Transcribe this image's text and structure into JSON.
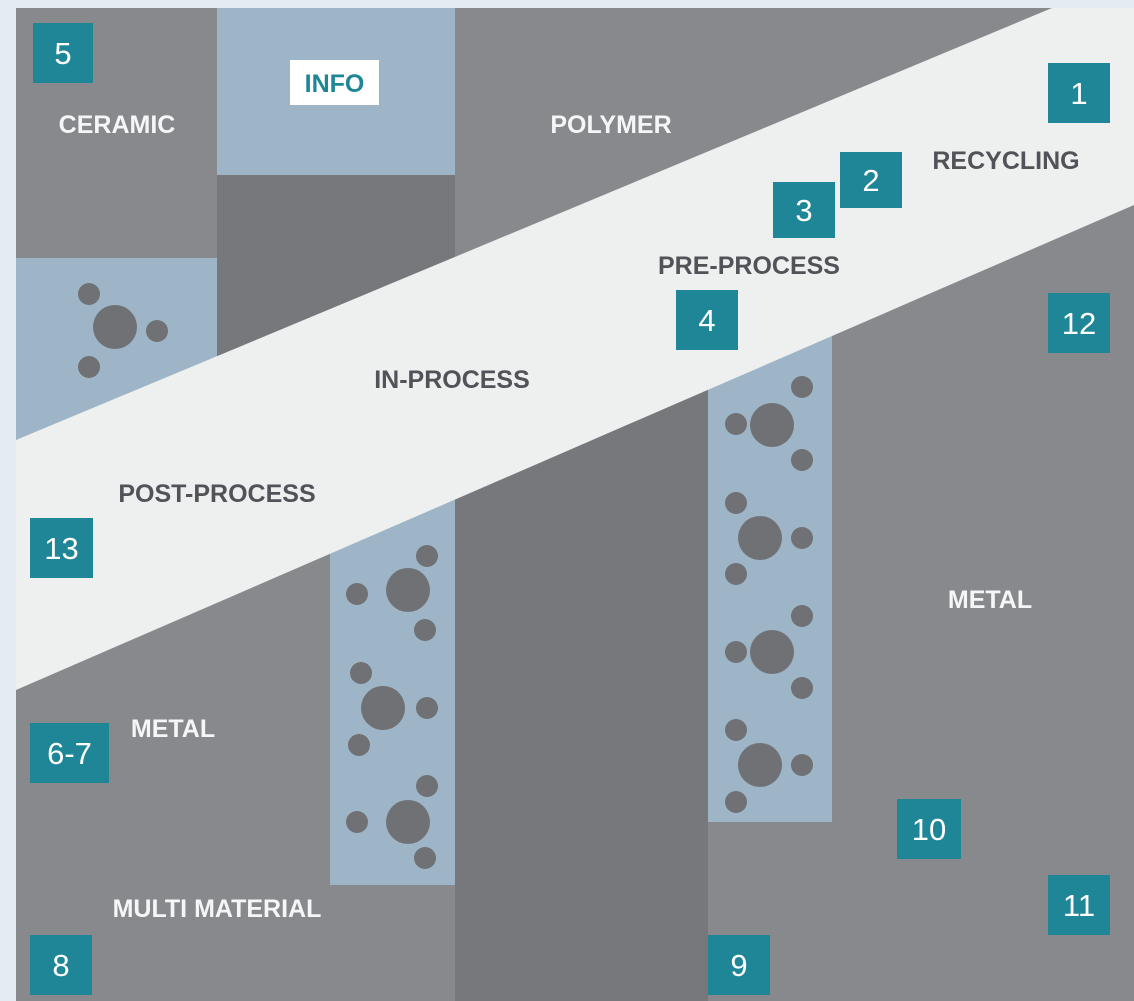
{
  "colors": {
    "background": "#e2ecf2",
    "panel_gray": "#88898c",
    "panel_dark": "#77787c",
    "panel_light_blue": "#9db5c6",
    "band": "#eef0f0",
    "badge": "#1e8697",
    "badge_text": "#ffffff",
    "dot": "#6f7175",
    "label_dark": "#505357",
    "label_light": "#f4f6f7"
  },
  "info_button": {
    "label": "INFO"
  },
  "regions": {
    "ceramic": "CERAMIC",
    "polymer": "POLYMER",
    "metal_right": "METAL",
    "metal_left": "METAL",
    "multi_material": "MULTI MATERIAL"
  },
  "process_band": {
    "recycling": "RECYCLING",
    "pre_process": "PRE-PROCESS",
    "in_process": "IN-PROCESS",
    "post_process": "POST-PROCESS"
  },
  "badges": {
    "b1": "1",
    "b2": "2",
    "b3": "3",
    "b4": "4",
    "b5": "5",
    "b6_7": "6-7",
    "b8": "8",
    "b9": "9",
    "b10": "10",
    "b11": "11",
    "b12": "12",
    "b13": "13"
  }
}
